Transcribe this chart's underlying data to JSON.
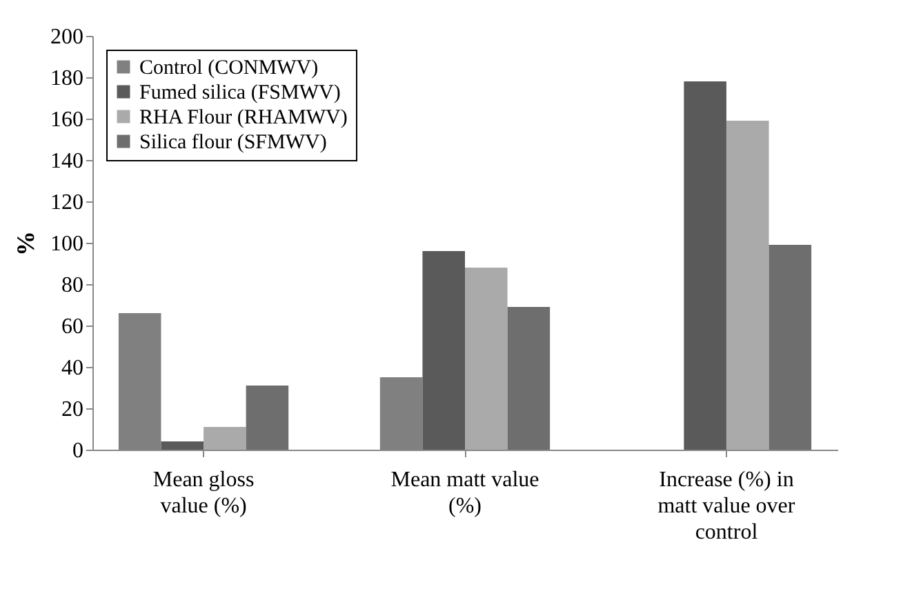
{
  "chart_data": {
    "type": "bar",
    "ylabel": "%",
    "categories": [
      "Mean gloss value (%)",
      "Mean matt value (%)",
      "Increase (%) in matt value over control"
    ],
    "series": [
      {
        "name": "Control (CONMWV)",
        "color": "#808080",
        "values": [
          66,
          35,
          null
        ]
      },
      {
        "name": "Fumed silica (FSMWV)",
        "color": "#5a5a5a",
        "values": [
          4,
          96,
          178
        ]
      },
      {
        "name": "RHA Flour (RHAMWV)",
        "color": "#aaaaaa",
        "values": [
          11,
          88,
          159
        ]
      },
      {
        "name": "Silica flour (SFMWV)",
        "color": "#6e6e6e",
        "values": [
          31,
          69,
          99
        ]
      }
    ],
    "ylim": [
      0,
      200
    ],
    "yticks": [
      0,
      20,
      40,
      60,
      80,
      100,
      120,
      140,
      160,
      180,
      200
    ],
    "grid": false,
    "legend": "top left"
  }
}
